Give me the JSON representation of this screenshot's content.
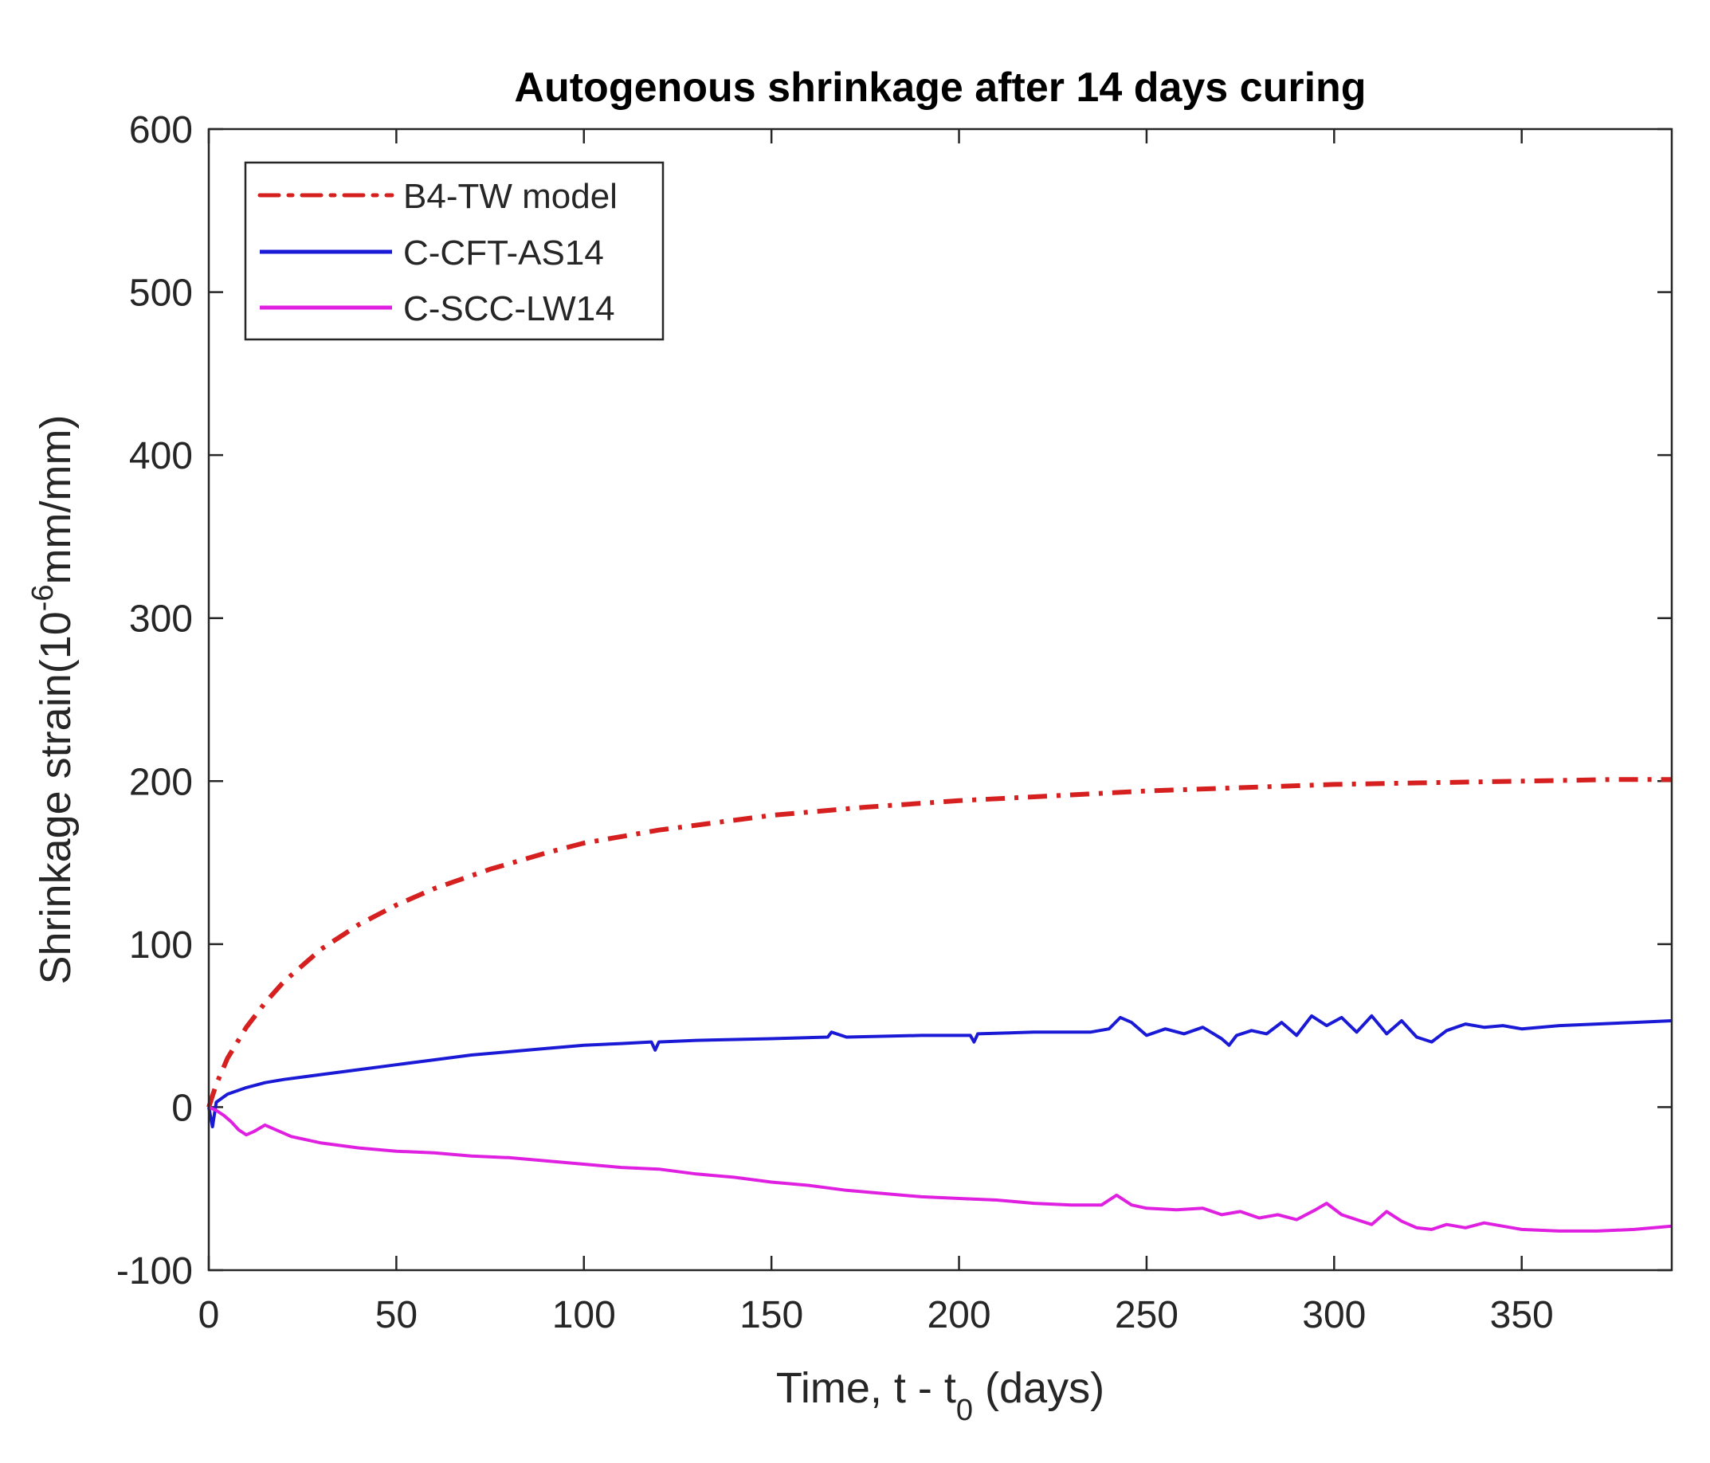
{
  "chart_data": {
    "type": "line",
    "title": "Autogenous shrinkage after 14 days curing",
    "xlabel": {
      "main": "Time, t - t",
      "sub": "0",
      "suffix": " (days)"
    },
    "ylabel": {
      "main": "Shrinkage strain(10",
      "sup": "-6",
      "suffix": "mm/mm)"
    },
    "xlim": [
      0,
      390
    ],
    "ylim": [
      -100,
      600
    ],
    "xticks": [
      0,
      50,
      100,
      150,
      200,
      250,
      300,
      350
    ],
    "yticks": [
      -100,
      0,
      100,
      200,
      300,
      400,
      500,
      600
    ],
    "legend_position": "top-left",
    "grid": false,
    "series": [
      {
        "name": "B4-TW model",
        "color": "#d62020",
        "style": "dashdot",
        "x": [
          0,
          2,
          5,
          10,
          15,
          20,
          30,
          40,
          50,
          60,
          75,
          90,
          100,
          120,
          150,
          175,
          200,
          225,
          250,
          275,
          300,
          325,
          350,
          375,
          390
        ],
        "y": [
          0,
          14,
          30,
          49,
          64,
          77,
          97,
          112,
          124,
          134,
          146,
          156,
          162,
          170,
          179,
          184,
          188,
          191,
          194,
          196,
          198,
          199,
          200,
          201,
          201
        ]
      },
      {
        "name": "C-CFT-AS14",
        "color": "#1a1ad6",
        "style": "solid",
        "x": [
          0,
          1,
          2,
          5,
          10,
          15,
          20,
          30,
          40,
          50,
          60,
          70,
          80,
          90,
          100,
          110,
          118,
          119,
          120,
          130,
          150,
          165,
          166,
          170,
          190,
          203,
          204,
          205,
          220,
          235,
          240,
          243,
          246,
          250,
          255,
          260,
          265,
          270,
          272,
          274,
          278,
          282,
          286,
          290,
          294,
          298,
          302,
          306,
          310,
          314,
          318,
          322,
          326,
          330,
          335,
          340,
          345,
          350,
          360,
          370,
          380,
          390
        ],
        "y": [
          0,
          -12,
          3,
          8,
          12,
          15,
          17,
          20,
          23,
          26,
          29,
          32,
          34,
          36,
          38,
          39,
          40,
          35,
          40,
          41,
          42,
          43,
          46,
          43,
          44,
          44,
          40,
          45,
          46,
          46,
          48,
          55,
          52,
          44,
          48,
          45,
          49,
          42,
          38,
          44,
          47,
          45,
          52,
          44,
          56,
          50,
          55,
          46,
          56,
          45,
          53,
          43,
          40,
          47,
          51,
          49,
          50,
          48,
          50,
          51,
          52,
          53
        ]
      },
      {
        "name": "C-SCC-LW14",
        "color": "#e020e0",
        "style": "solid",
        "x": [
          0,
          2,
          4,
          6,
          8,
          10,
          12,
          15,
          18,
          22,
          30,
          40,
          50,
          60,
          70,
          80,
          90,
          100,
          110,
          120,
          130,
          140,
          150,
          160,
          170,
          180,
          190,
          200,
          210,
          220,
          230,
          238,
          242,
          246,
          250,
          258,
          265,
          270,
          275,
          280,
          285,
          290,
          295,
          298,
          302,
          306,
          310,
          314,
          318,
          322,
          326,
          330,
          335,
          340,
          345,
          350,
          360,
          370,
          380,
          390
        ],
        "y": [
          0,
          -2,
          -5,
          -9,
          -14,
          -17,
          -15,
          -11,
          -14,
          -18,
          -22,
          -25,
          -27,
          -28,
          -30,
          -31,
          -33,
          -35,
          -37,
          -38,
          -41,
          -43,
          -46,
          -48,
          -51,
          -53,
          -55,
          -56,
          -57,
          -59,
          -60,
          -60,
          -54,
          -60,
          -62,
          -63,
          -62,
          -66,
          -64,
          -68,
          -66,
          -69,
          -63,
          -59,
          -66,
          -69,
          -72,
          -64,
          -70,
          -74,
          -75,
          -72,
          -74,
          -71,
          -73,
          -75,
          -76,
          -76,
          -75,
          -73
        ]
      }
    ]
  }
}
